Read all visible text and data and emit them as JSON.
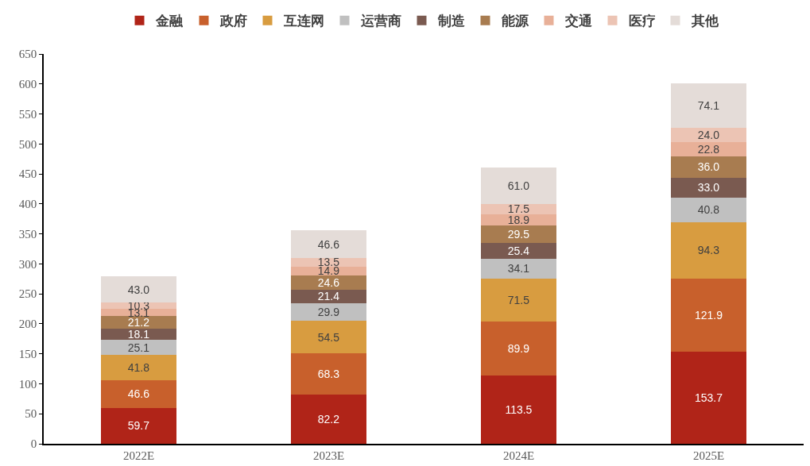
{
  "chart_data": {
    "type": "bar",
    "stacked": true,
    "categories": [
      "2022E",
      "2023E",
      "2024E",
      "2025E"
    ],
    "ylim": [
      0,
      650
    ],
    "yticks": [
      0,
      50,
      100,
      150,
      200,
      250,
      300,
      350,
      400,
      450,
      500,
      550,
      600,
      650
    ],
    "grid": false,
    "legend": "top",
    "series": [
      {
        "name": "金融",
        "color": "#b02418",
        "values": [
          59.7,
          82.2,
          113.5,
          153.7
        ],
        "value_labels": [
          "59.7",
          "82.2",
          "113.5",
          "153.7"
        ]
      },
      {
        "name": "政府",
        "color": "#c8602c",
        "values": [
          46.6,
          68.3,
          89.9,
          121.9
        ],
        "value_labels": [
          "46.6",
          "68.3",
          "89.9",
          "121.9"
        ]
      },
      {
        "name": "互连网",
        "color": "#d89c40",
        "values": [
          41.8,
          54.5,
          71.5,
          94.3
        ],
        "value_labels": [
          "41.8",
          "54.5",
          "71.5",
          "94.3"
        ]
      },
      {
        "name": "运营商",
        "color": "#c0c0c0",
        "values": [
          25.1,
          29.9,
          34.1,
          40.8
        ],
        "value_labels": [
          "25.1",
          "29.9",
          "34.1",
          "40.8"
        ]
      },
      {
        "name": "制造",
        "color": "#7a5a50",
        "values": [
          18.1,
          21.4,
          25.4,
          33.0
        ],
        "value_labels": [
          "18.1",
          "21.4",
          "25.4",
          "33.0"
        ]
      },
      {
        "name": "能源",
        "color": "#a87c50",
        "values": [
          21.2,
          24.6,
          29.5,
          36.0
        ],
        "value_labels": [
          "21.2",
          "24.6",
          "29.5",
          "36.0"
        ]
      },
      {
        "name": "交通",
        "color": "#e8b098",
        "values": [
          13.1,
          14.9,
          18.9,
          22.8
        ],
        "value_labels": [
          "13.1",
          "14.9",
          "18.9",
          "22.8"
        ]
      },
      {
        "name": "医疗",
        "color": "#ecc4b4",
        "values": [
          10.3,
          13.5,
          17.5,
          24.0
        ],
        "value_labels": [
          "10.3",
          "13.5",
          "17.5",
          "24.0"
        ]
      },
      {
        "name": "其他",
        "color": "#e4dcd8",
        "values": [
          43.0,
          46.6,
          61.0,
          74.1
        ],
        "value_labels": [
          "43.0",
          "46.6",
          "61.0",
          "74.1"
        ]
      }
    ]
  }
}
